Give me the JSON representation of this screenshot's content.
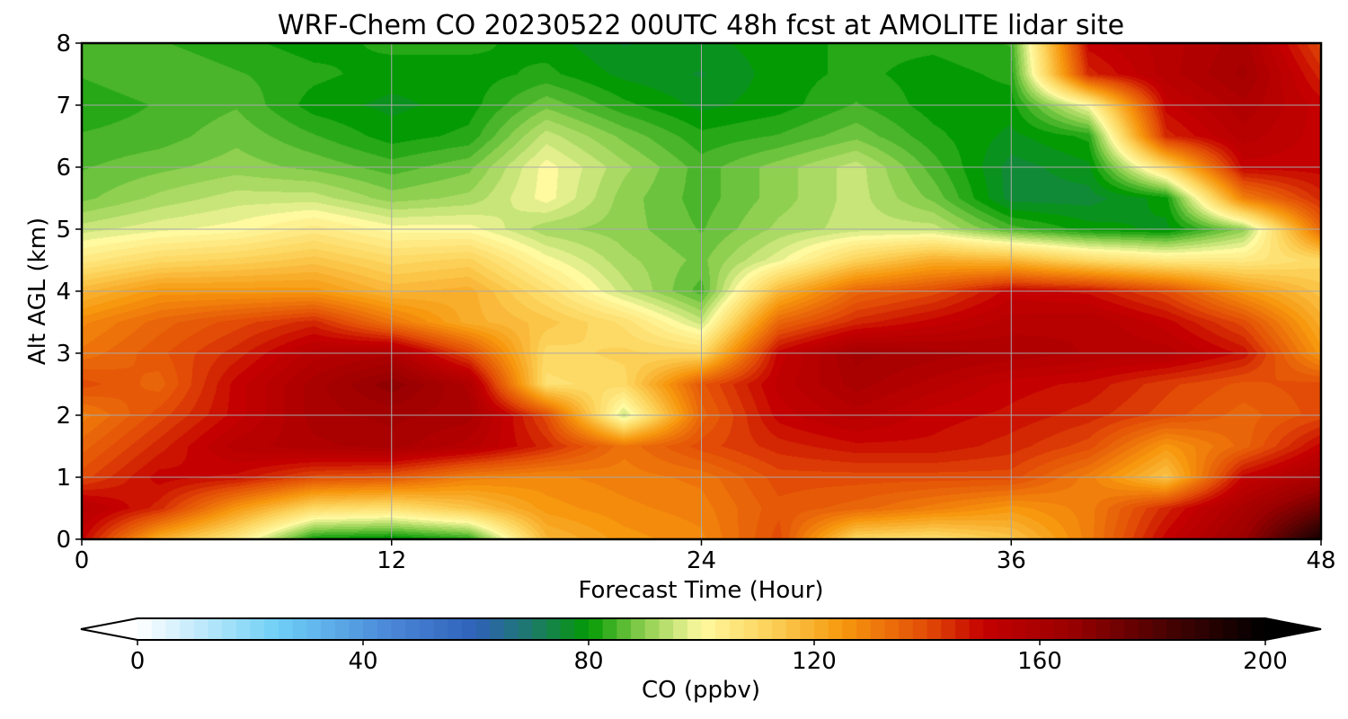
{
  "chart_data": {
    "type": "heatmap",
    "title": "WRF-Chem CO  20230522 00UTC 48h fcst at AMOLITE lidar site",
    "xlabel": "Forecast Time (Hour)",
    "ylabel": "Alt AGL (km)",
    "xlim": [
      0,
      48
    ],
    "ylim": [
      0,
      8
    ],
    "x_ticks": [
      0,
      12,
      24,
      36,
      48
    ],
    "y_ticks": [
      0,
      1,
      2,
      3,
      4,
      5,
      6,
      7,
      8
    ],
    "grid": true,
    "x_hours": [
      0,
      3,
      6,
      9,
      12,
      15,
      18,
      21,
      24,
      27,
      30,
      33,
      36,
      39,
      42,
      45,
      48
    ],
    "y_km": [
      0,
      0.5,
      1,
      1.5,
      2,
      2.5,
      3,
      3.5,
      4,
      4.5,
      5,
      5.5,
      6,
      6.5,
      7,
      7.5,
      8
    ],
    "values_ppbv": [
      [
        150,
        120,
        105,
        80,
        78,
        82,
        118,
        125,
        128,
        140,
        110,
        108,
        115,
        130,
        150,
        165,
        195
      ],
      [
        155,
        145,
        125,
        110,
        108,
        115,
        125,
        128,
        130,
        138,
        135,
        130,
        125,
        130,
        145,
        160,
        175
      ],
      [
        140,
        150,
        148,
        140,
        138,
        130,
        128,
        130,
        132,
        140,
        140,
        140,
        140,
        130,
        115,
        150,
        160
      ],
      [
        135,
        145,
        155,
        158,
        160,
        155,
        145,
        132,
        140,
        145,
        148,
        148,
        145,
        140,
        125,
        135,
        150
      ],
      [
        130,
        140,
        150,
        160,
        162,
        160,
        140,
        95,
        135,
        150,
        155,
        150,
        148,
        145,
        140,
        135,
        140
      ],
      [
        140,
        135,
        150,
        160,
        168,
        158,
        108,
        110,
        138,
        152,
        160,
        155,
        150,
        148,
        142,
        138,
        140
      ],
      [
        132,
        138,
        145,
        155,
        158,
        140,
        110,
        112,
        110,
        150,
        162,
        160,
        158,
        156,
        155,
        148,
        125
      ],
      [
        128,
        135,
        140,
        145,
        132,
        120,
        115,
        108,
        95,
        135,
        145,
        150,
        155,
        156,
        150,
        140,
        120
      ],
      [
        118,
        125,
        125,
        125,
        118,
        120,
        108,
        95,
        85,
        118,
        135,
        140,
        150,
        148,
        140,
        125,
        115
      ],
      [
        105,
        110,
        112,
        115,
        110,
        112,
        100,
        92,
        88,
        98,
        112,
        120,
        118,
        110,
        105,
        105,
        110
      ],
      [
        95,
        98,
        100,
        105,
        100,
        100,
        92,
        90,
        86,
        92,
        95,
        95,
        85,
        80,
        78,
        90,
        135
      ],
      [
        88,
        92,
        95,
        95,
        90,
        92,
        100,
        90,
        85,
        90,
        95,
        88,
        75,
        75,
        80,
        130,
        145
      ],
      [
        86,
        88,
        90,
        88,
        85,
        88,
        100,
        92,
        85,
        90,
        95,
        85,
        75,
        78,
        110,
        150,
        150
      ],
      [
        84,
        85,
        88,
        84,
        80,
        82,
        95,
        88,
        82,
        84,
        88,
        82,
        78,
        82,
        145,
        155,
        150
      ],
      [
        82,
        84,
        86,
        80,
        78,
        80,
        88,
        82,
        78,
        80,
        84,
        80,
        80,
        100,
        150,
        158,
        150
      ],
      [
        84,
        86,
        84,
        82,
        80,
        80,
        82,
        78,
        76,
        80,
        82,
        80,
        82,
        145,
        155,
        162,
        145
      ],
      [
        85,
        84,
        82,
        80,
        82,
        82,
        80,
        76,
        78,
        80,
        82,
        82,
        84,
        150,
        155,
        160,
        140
      ]
    ],
    "colorbar": {
      "label": "CO  (ppbv)",
      "min": 0,
      "max": 200,
      "extend": "both",
      "ticks": [
        0,
        40,
        80,
        120,
        160,
        200
      ],
      "colormap_stops": [
        {
          "v": 0,
          "c": "#ffffff"
        },
        {
          "v": 25,
          "c": "#6ecff6"
        },
        {
          "v": 45,
          "c": "#4a86d8"
        },
        {
          "v": 60,
          "c": "#2e62b8"
        },
        {
          "v": 70,
          "c": "#1d7a6a"
        },
        {
          "v": 80,
          "c": "#049a04"
        },
        {
          "v": 90,
          "c": "#8fd050"
        },
        {
          "v": 100,
          "c": "#fff9a0"
        },
        {
          "v": 112,
          "c": "#fcd25a"
        },
        {
          "v": 125,
          "c": "#f7980e"
        },
        {
          "v": 140,
          "c": "#e24c06"
        },
        {
          "v": 150,
          "c": "#c40000"
        },
        {
          "v": 165,
          "c": "#9c0000"
        },
        {
          "v": 185,
          "c": "#3d0202"
        },
        {
          "v": 200,
          "c": "#000000"
        }
      ]
    }
  }
}
